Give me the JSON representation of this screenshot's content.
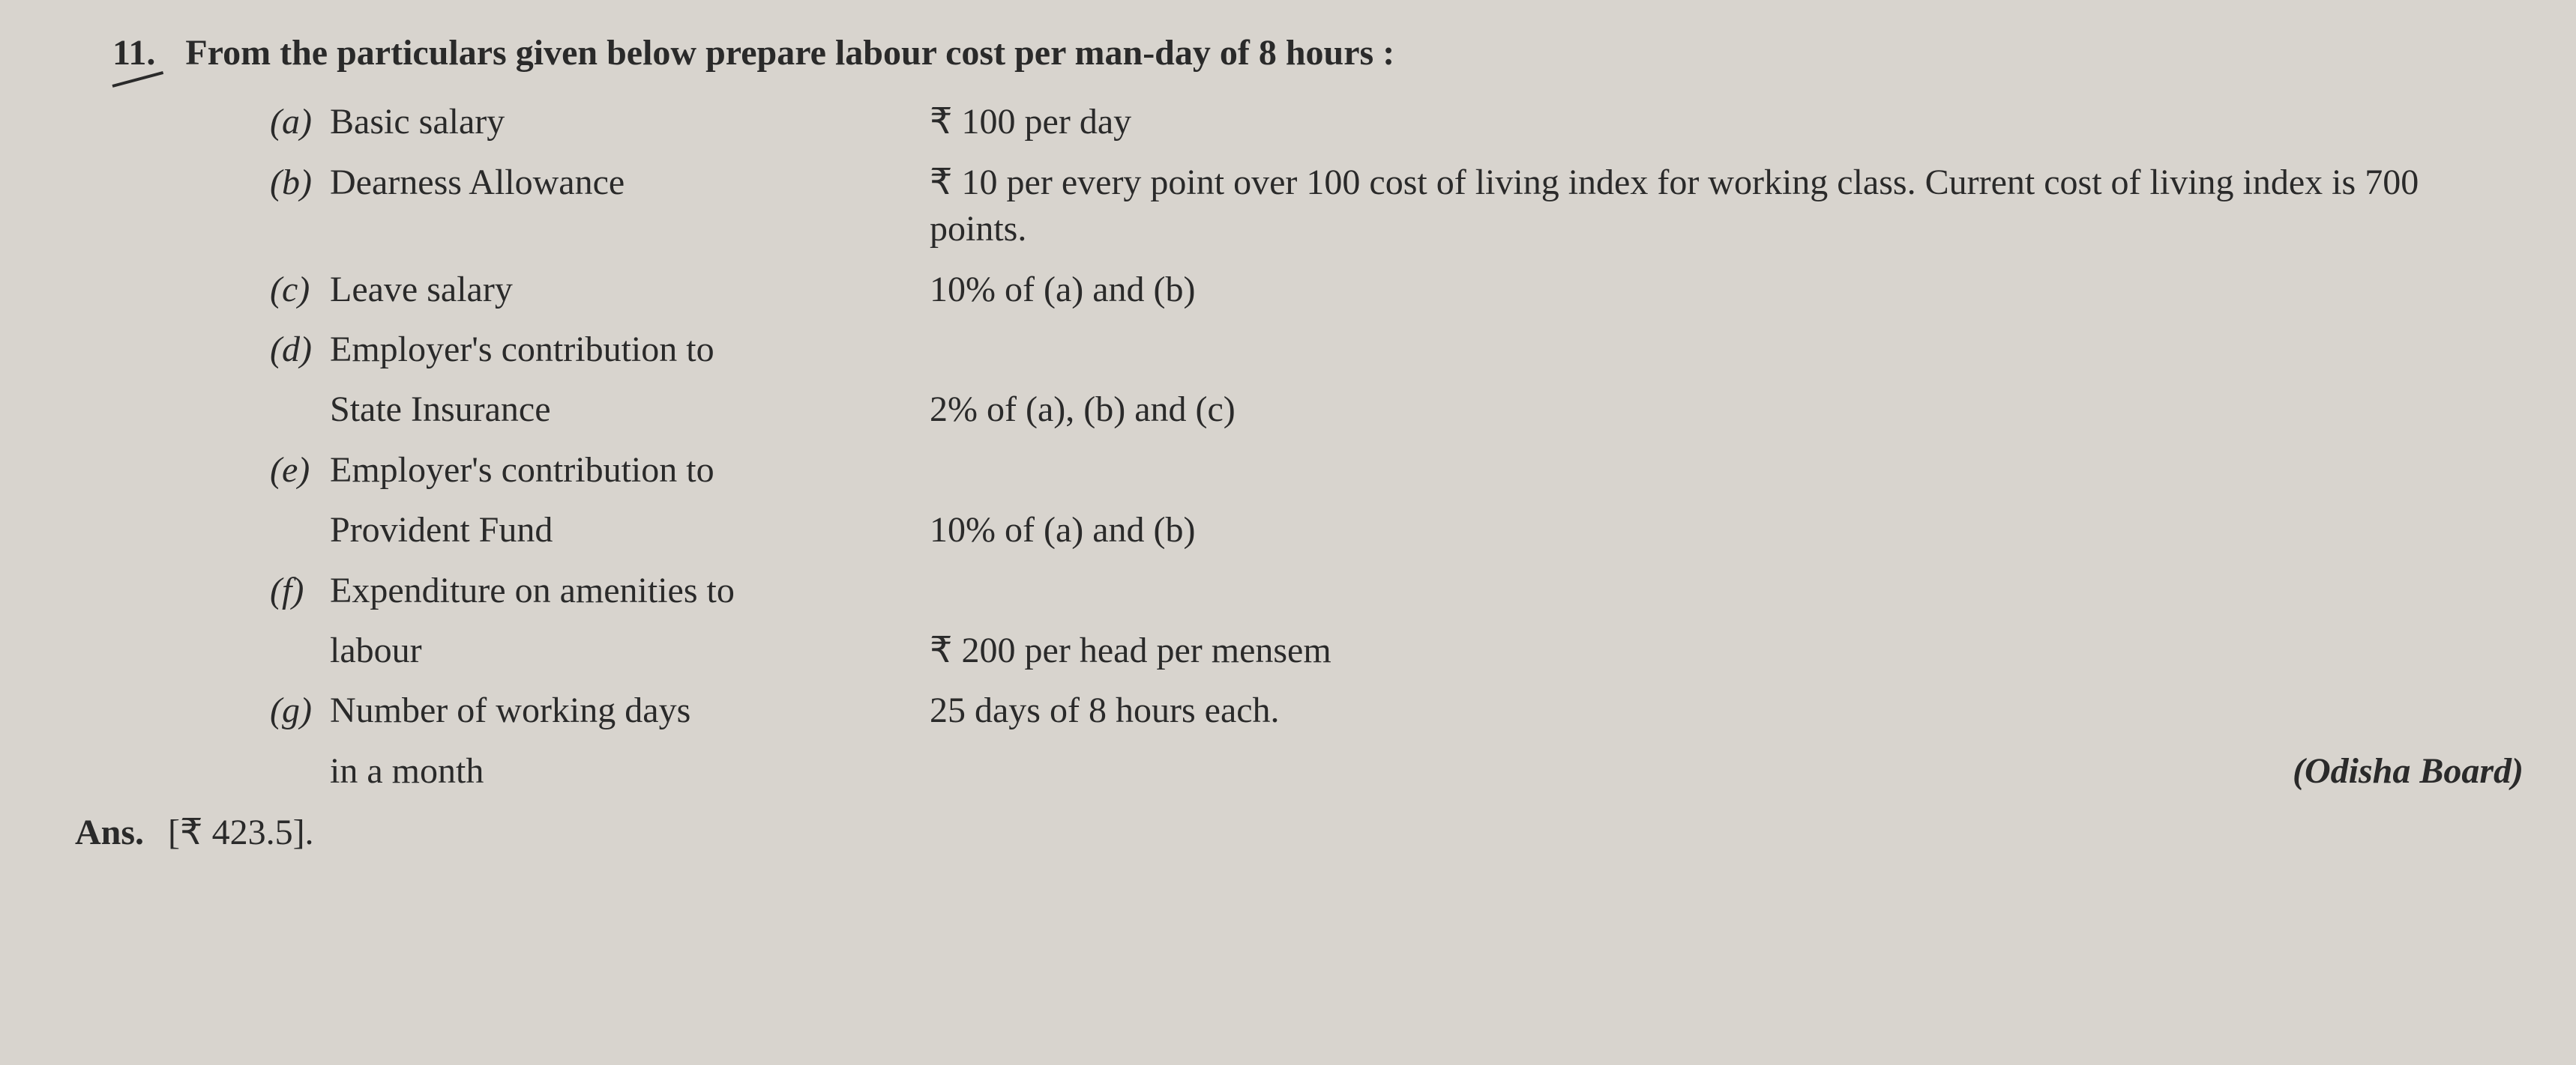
{
  "question": {
    "number": "11.",
    "text": "From the particulars given below prepare labour cost per man-day of 8 hours :"
  },
  "items": [
    {
      "label": "(a)",
      "desc": "Basic salary",
      "value": "₹ 100 per day"
    },
    {
      "label": "(b)",
      "desc": "Dearness Allowance",
      "value": "₹ 10 per every point over 100 cost of living index for working class. Current cost of living index is 700 points."
    },
    {
      "label": "(c)",
      "desc": "Leave salary",
      "value": "10% of (a) and (b)"
    },
    {
      "label": "(d)",
      "desc": "Employer's contribution to",
      "desc2": "State Insurance",
      "value": "2% of (a), (b) and (c)"
    },
    {
      "label": "(e)",
      "desc": "Employer's contribution to",
      "desc2": "Provident Fund",
      "value": "10% of (a) and (b)"
    },
    {
      "label": "(f)",
      "desc": "Expenditure on amenities to",
      "desc2": "labour",
      "value": "₹ 200 per head per mensem"
    },
    {
      "label": "(g)",
      "desc": "Number of working days",
      "desc2": "in a month",
      "value": "25 days of 8 hours each."
    }
  ],
  "answer": {
    "label": "Ans.",
    "value": "[₹ 423.5]."
  },
  "board": "(Odisha Board)",
  "colors": {
    "background": "#d8d4ce",
    "text": "#2a2a2a"
  },
  "typography": {
    "base_fontsize": 48,
    "font_family": "Georgia, Times New Roman, serif",
    "label_style": "italic",
    "header_weight": "bold"
  }
}
